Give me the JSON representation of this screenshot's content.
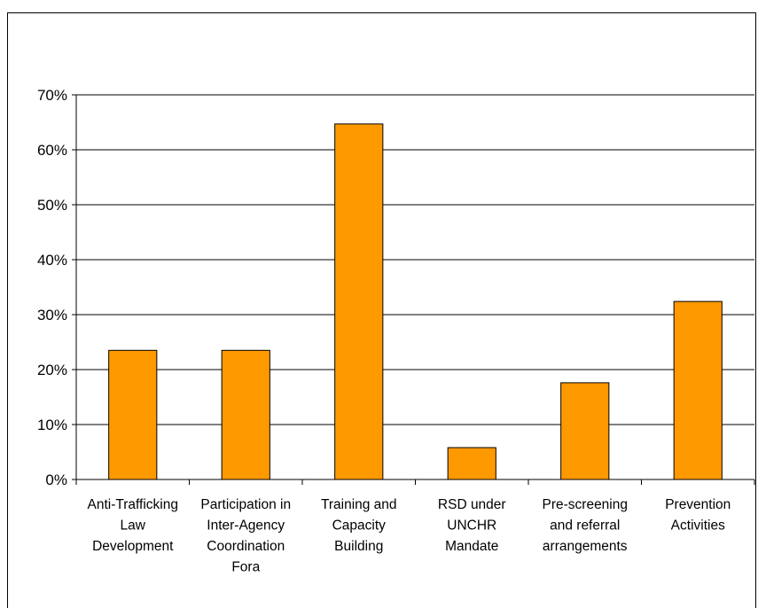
{
  "chart_data": {
    "type": "bar",
    "title": "",
    "xlabel": "",
    "ylabel": "",
    "categories": [
      [
        "Anti-Trafficking",
        "Law",
        "Development"
      ],
      [
        "Participation in",
        "Inter-Agency",
        "Coordination",
        "Fora"
      ],
      [
        "Training and",
        "Capacity",
        "Building"
      ],
      [
        "RSD under",
        "UNCHR",
        "Mandate"
      ],
      [
        "Pre-screening",
        "and referral",
        "arrangements"
      ],
      [
        "Prevention",
        "Activities"
      ]
    ],
    "values": [
      23.5,
      23.5,
      64.7,
      5.8,
      17.6,
      32.4
    ],
    "ylim": [
      0,
      70
    ],
    "yticks": [
      "0%",
      "10%",
      "20%",
      "30%",
      "40%",
      "50%",
      "60%",
      "70%"
    ],
    "grid": true,
    "legend": "none",
    "colors": {
      "bar_fill": "#FF9900",
      "bar_stroke": "#000000",
      "grid": "#000000"
    }
  }
}
